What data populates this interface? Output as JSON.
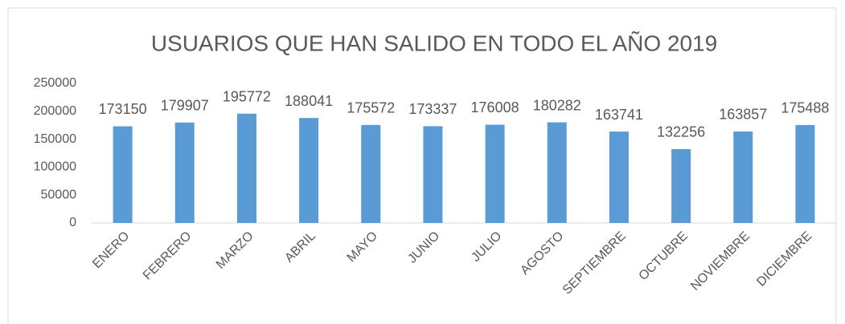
{
  "chart_data": {
    "type": "bar",
    "title": "USUARIOS QUE HAN SALIDO EN TODO EL AÑO 2019",
    "categories": [
      "ENERO",
      "FEBRERO",
      "MARZO",
      "ABRIL",
      "MAYO",
      "JUNIO",
      "JULIO",
      "AGOSTO",
      "SEPTIEMBRE",
      "OCTUBRE",
      "NOVIEMBRE",
      "DICIEMBRE"
    ],
    "values": [
      173150,
      179907,
      195772,
      188041,
      175572,
      173337,
      176008,
      180282,
      163741,
      132256,
      163857,
      175488
    ],
    "color": "#5b9bd5",
    "ylim": [
      0,
      250000
    ],
    "yticks": [
      0,
      50000,
      100000,
      150000,
      200000,
      250000
    ],
    "grid": false
  }
}
